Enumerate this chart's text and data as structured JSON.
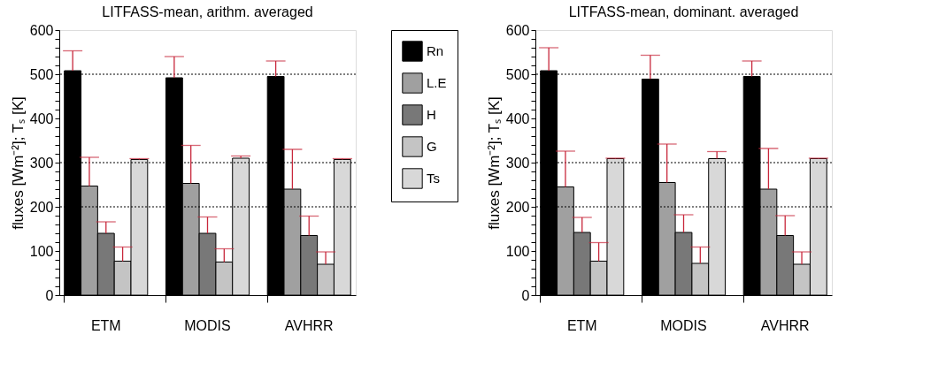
{
  "chart_data": [
    {
      "type": "bar",
      "title": "LITFASS-mean, arithm. averaged",
      "ylabel": "fluxes [Wm⁻²]; Tₛ [K]",
      "categories": [
        "ETM",
        "MODIS",
        "AVHRR"
      ],
      "ylim": [
        0,
        600
      ],
      "yticks": [
        0,
        {
          "value": 20,
          "label": null
        },
        {
          "value": 40,
          "label": null
        },
        {
          "value": 60,
          "label": null
        },
        {
          "value": 80,
          "label": null
        },
        100,
        {
          "value": 120,
          "label": null
        },
        {
          "value": 140,
          "label": null
        },
        {
          "value": 160,
          "label": null
        },
        {
          "value": 180,
          "label": null
        },
        200,
        {
          "value": 220,
          "label": null
        },
        {
          "value": 240,
          "label": null
        },
        {
          "value": 260,
          "label": null
        },
        {
          "value": 280,
          "label": null
        },
        300,
        {
          "value": 320,
          "label": null
        },
        {
          "value": 340,
          "label": null
        },
        {
          "value": 360,
          "label": null
        },
        {
          "value": 380,
          "label": null
        },
        400,
        {
          "value": 420,
          "label": null
        },
        {
          "value": 440,
          "label": null
        },
        {
          "value": 460,
          "label": null
        },
        {
          "value": 480,
          "label": null
        },
        500,
        {
          "value": 520,
          "label": null
        },
        {
          "value": 540,
          "label": null
        },
        {
          "value": 560,
          "label": null
        },
        {
          "value": 580,
          "label": null
        },
        600
      ],
      "ref_lines": [
        {
          "axis": "y",
          "value": 200,
          "line_style": "dotted"
        },
        {
          "axis": "y",
          "value": 300,
          "line_style": "dotted"
        },
        {
          "axis": "y",
          "value": 500,
          "line_style": "dotted"
        }
      ],
      "legend": "right",
      "series": [
        {
          "name": "Rn",
          "color": "#000000",
          "values": [
            508,
            492,
            495
          ],
          "errors": [
            [
              508,
              553
            ],
            [
              492,
              540
            ],
            [
              495,
              530
            ]
          ]
        },
        {
          "name": "L.E",
          "color": "#a0a0a0",
          "values": [
            247,
            253,
            240
          ],
          "errors": [
            [
              247,
              312
            ],
            [
              253,
              339
            ],
            [
              240,
              330
            ]
          ]
        },
        {
          "name": "H",
          "color": "#787878",
          "values": [
            140,
            140,
            135
          ],
          "errors": [
            [
              140,
              166
            ],
            [
              140,
              177
            ],
            [
              135,
              179
            ]
          ]
        },
        {
          "name": "G",
          "color": "#c4c4c4",
          "values": [
            77,
            75,
            70
          ],
          "errors": [
            [
              77,
              109
            ],
            [
              75,
              105
            ],
            [
              70,
              98
            ]
          ]
        },
        {
          "name": "Ts",
          "color": "#d8d8d8",
          "values": [
            307,
            310,
            307
          ],
          "errors": [
            [
              307,
              309
            ],
            [
              310,
              315
            ],
            [
              307,
              309
            ]
          ]
        }
      ]
    },
    {
      "type": "bar",
      "title": "LITFASS-mean, dominant. averaged",
      "ylabel": "fluxes [Wm⁻²]; Tₛ [K]",
      "categories": [
        "ETM",
        "MODIS",
        "AVHRR"
      ],
      "ylim": [
        0,
        600
      ],
      "yticks": [
        0,
        {
          "value": 20,
          "label": null
        },
        {
          "value": 40,
          "label": null
        },
        {
          "value": 60,
          "label": null
        },
        {
          "value": 80,
          "label": null
        },
        100,
        {
          "value": 120,
          "label": null
        },
        {
          "value": 140,
          "label": null
        },
        {
          "value": 160,
          "label": null
        },
        {
          "value": 180,
          "label": null
        },
        200,
        {
          "value": 220,
          "label": null
        },
        {
          "value": 240,
          "label": null
        },
        {
          "value": 260,
          "label": null
        },
        {
          "value": 280,
          "label": null
        },
        300,
        {
          "value": 320,
          "label": null
        },
        {
          "value": 340,
          "label": null
        },
        {
          "value": 360,
          "label": null
        },
        {
          "value": 380,
          "label": null
        },
        400,
        {
          "value": 420,
          "label": null
        },
        {
          "value": 440,
          "label": null
        },
        {
          "value": 460,
          "label": null
        },
        {
          "value": 480,
          "label": null
        },
        500,
        {
          "value": 520,
          "label": null
        },
        {
          "value": 540,
          "label": null
        },
        {
          "value": 560,
          "label": null
        },
        {
          "value": 580,
          "label": null
        },
        600
      ],
      "ref_lines": [
        {
          "axis": "y",
          "value": 200,
          "line_style": "dotted"
        },
        {
          "axis": "y",
          "value": 300,
          "line_style": "dotted"
        },
        {
          "axis": "y",
          "value": 500,
          "line_style": "dotted"
        }
      ],
      "series": [
        {
          "color": "#000000",
          "values": [
            508,
            489,
            495
          ],
          "errors": [
            [
              508,
              560
            ],
            [
              489,
              543
            ],
            [
              495,
              530
            ]
          ]
        },
        {
          "color": "#a0a0a0",
          "values": [
            245,
            255,
            240
          ],
          "errors": [
            [
              245,
              326
            ],
            [
              255,
              342
            ],
            [
              240,
              332
            ]
          ]
        },
        {
          "color": "#787878",
          "values": [
            142,
            142,
            135
          ],
          "errors": [
            [
              142,
              176
            ],
            [
              142,
              182
            ],
            [
              135,
              180
            ]
          ]
        },
        {
          "color": "#c4c4c4",
          "values": [
            77,
            72,
            70
          ],
          "errors": [
            [
              77,
              119
            ],
            [
              72,
              109
            ],
            [
              70,
              98
            ]
          ]
        },
        {
          "color": "#d8d8d8",
          "values": [
            309,
            309,
            309
          ],
          "errors": [
            [
              309,
              310
            ],
            [
              309,
              325
            ],
            [
              309,
              310
            ]
          ]
        }
      ]
    }
  ]
}
